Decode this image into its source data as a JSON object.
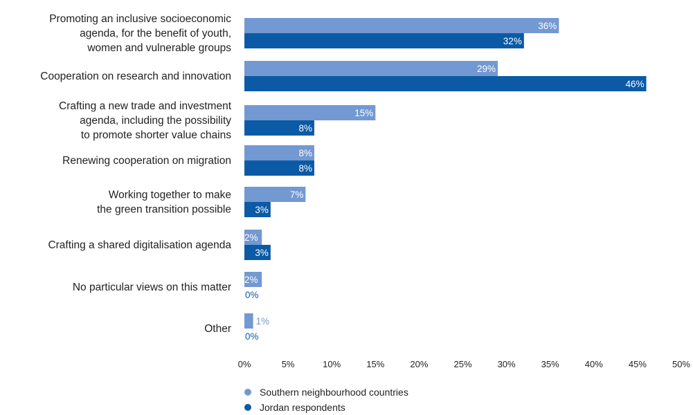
{
  "chart_data": {
    "type": "bar",
    "orientation": "horizontal",
    "categories": [
      [
        "Promoting an inclusive socioeconomic",
        "agenda, for the benefit of youth,",
        "women and vulnerable groups"
      ],
      [
        "Cooperation on research and innovation"
      ],
      [
        "Crafting a new trade and investment",
        "agenda, including the possibility",
        "to promote shorter value chains"
      ],
      [
        "Renewing cooperation on migration"
      ],
      [
        "Working together to make",
        "the green transition possible"
      ],
      [
        "Crafting a shared digitalisation agenda"
      ],
      [
        "No particular views on this matter"
      ],
      [
        "Other"
      ]
    ],
    "series": [
      {
        "name": "Southern neighbourhood countries",
        "color": "#7399d2",
        "values": [
          36,
          29,
          15,
          8,
          7,
          2,
          2,
          1
        ],
        "labels": [
          "36%",
          "29%",
          "15%",
          "8%",
          "7%",
          "2%",
          "2%",
          "1%"
        ]
      },
      {
        "name": "Jordan respondents",
        "color": "#0b5aa6",
        "values": [
          32,
          46,
          8,
          8,
          3,
          3,
          0,
          0
        ],
        "labels": [
          "32%",
          "46%",
          "8%",
          "8%",
          "3%",
          "3%",
          "0%",
          "0%"
        ]
      }
    ],
    "xlim": [
      0,
      50
    ],
    "xticks": [
      "0%",
      "5%",
      "10%",
      "15%",
      "20%",
      "25%",
      "30%",
      "35%",
      "40%",
      "45%",
      "50%"
    ],
    "grid": false,
    "legend": "bottom-left"
  }
}
